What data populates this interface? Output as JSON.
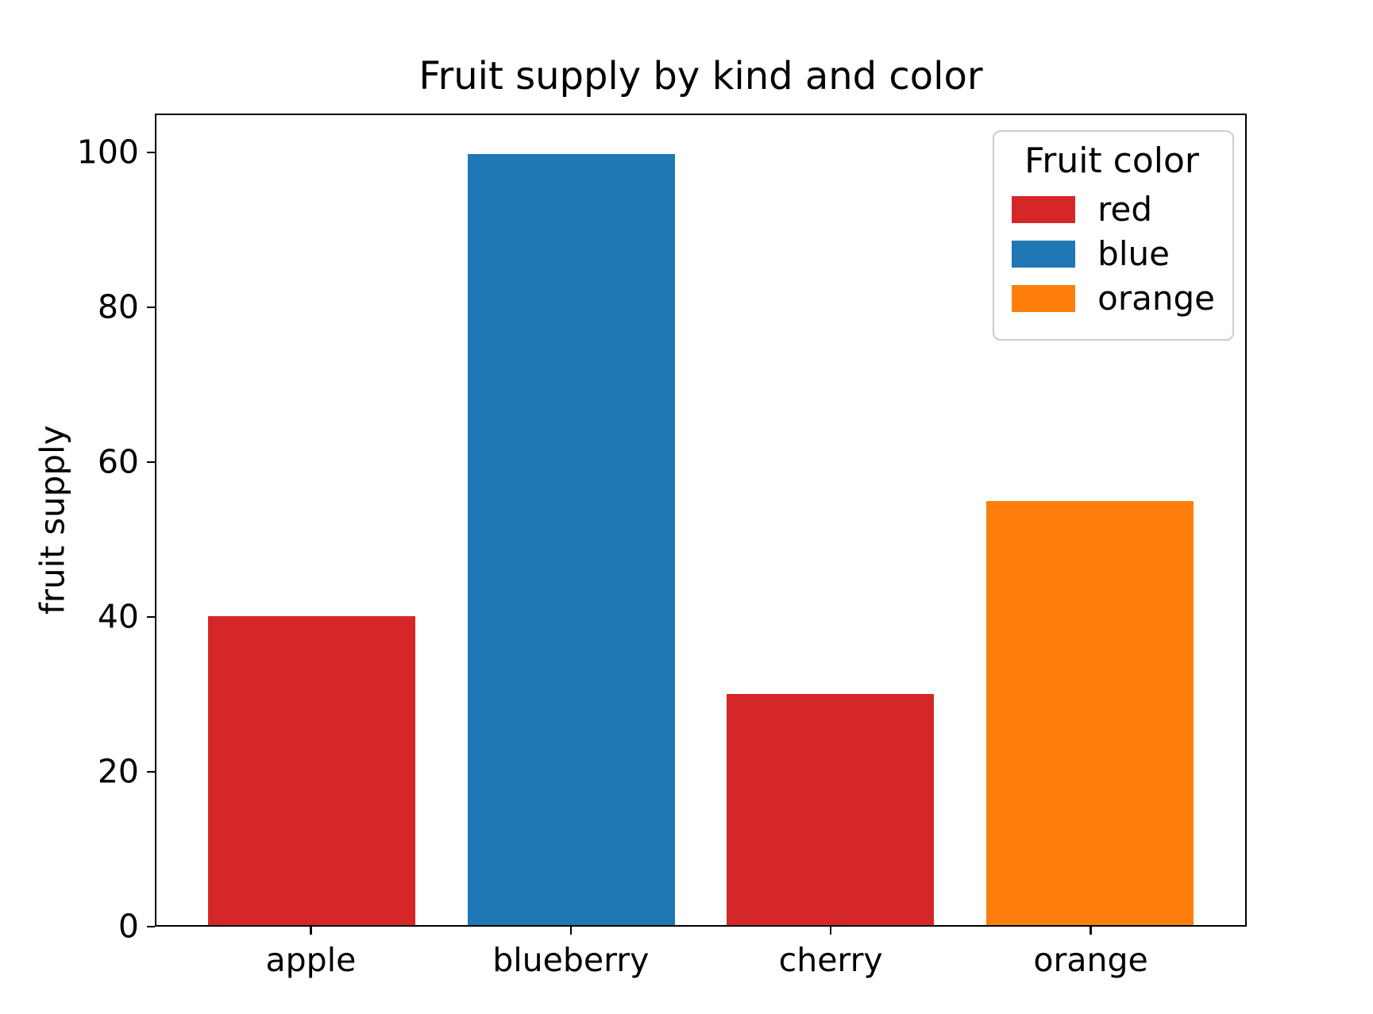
{
  "chart_data": {
    "type": "bar",
    "title": "Fruit supply by kind and color",
    "xlabel": "",
    "ylabel": "fruit supply",
    "categories": [
      "apple",
      "blueberry",
      "cherry",
      "orange"
    ],
    "values": [
      40,
      100,
      30,
      55
    ],
    "bar_colors": [
      "#d62728",
      "#1f77b4",
      "#d62728",
      "#ff7f0e"
    ],
    "ylim": [
      0,
      105
    ],
    "yticks": [
      0,
      20,
      40,
      60,
      80,
      100
    ],
    "grid": false,
    "legend": {
      "title": "Fruit color",
      "position": "upper right",
      "entries": [
        {
          "label": "red",
          "color": "#d62728"
        },
        {
          "label": "blue",
          "color": "#1f77b4"
        },
        {
          "label": "orange",
          "color": "#ff7f0e"
        }
      ]
    }
  }
}
